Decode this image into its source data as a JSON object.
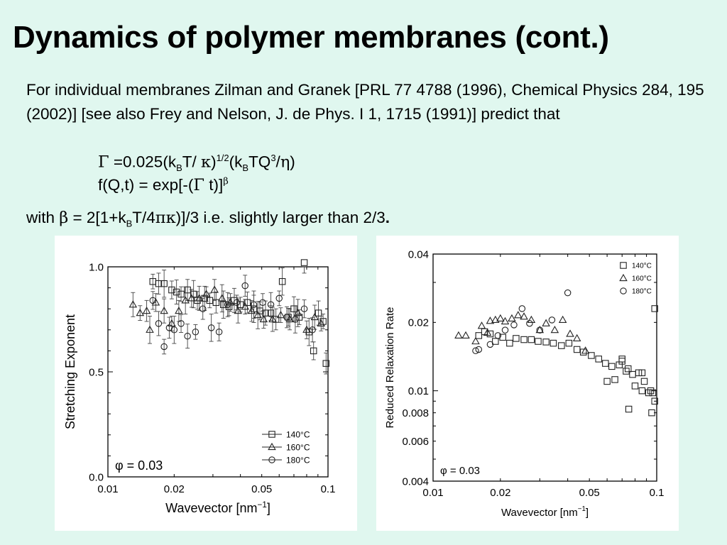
{
  "slide": {
    "title": "Dynamics of polymer membranes (cont.)",
    "intro": "For individual membranes Zilman and Granek [PRL 77 4788 (1996), Chemical Physics 284, 195 (2002)] [see also Frey and Nelson, J. de Phys. I 1, 1715 (1991)] predict that",
    "eq1": {
      "gamma": "Γ",
      "part1": " =0.025(k",
      "sub_b1": "B",
      "part2": "T/ ",
      "kappa": "κ",
      "part3": ")",
      "exp": "1/2",
      "part4": "(k",
      "sub_b2": "B",
      "part5": "TQ",
      "exp3": "3",
      "part6": "/",
      "eta": "η",
      "part7": ")"
    },
    "eq2": {
      "part1": "f(Q,t) = exp[-(",
      "gamma": "Γ",
      "part2": " t)]",
      "beta": "β"
    },
    "with_line": {
      "part1": "with ",
      "beta": "β",
      "part2": " = 2[1+k",
      "sub_b": "B",
      "part3": "T/4",
      "pikappa": "πκ",
      "part4": ")]/3 i.e. slightly larger than 2/3",
      "period": "."
    }
  },
  "chart_data": [
    {
      "type": "scatter",
      "title": "",
      "xlabel": "Wavevector [nm",
      "xlabel_sup": "−1",
      "xlabel_end": "]",
      "ylabel": "Stretching Exponent",
      "xscale": "log",
      "xlim": [
        0.01,
        0.1
      ],
      "ylim": [
        0.0,
        1.0
      ],
      "xticks": [
        "0.01",
        "0.02",
        "0.05",
        "0.1"
      ],
      "yticks": [
        "0.0",
        "0.5",
        "1.0"
      ],
      "annotation": "φ = 0.03",
      "legend_position": "bottom-right",
      "error_bars": true,
      "series": [
        {
          "name": "140°C",
          "marker": "square",
          "points": [
            [
              0.016,
              0.93
            ],
            [
              0.017,
              0.92
            ],
            [
              0.018,
              0.92
            ],
            [
              0.0195,
              0.89
            ],
            [
              0.0205,
              0.88
            ],
            [
              0.0215,
              0.87
            ],
            [
              0.023,
              0.89
            ],
            [
              0.0245,
              0.87
            ],
            [
              0.0255,
              0.84
            ],
            [
              0.0275,
              0.85
            ],
            [
              0.029,
              0.84
            ],
            [
              0.031,
              0.83
            ],
            [
              0.0335,
              0.82
            ],
            [
              0.0355,
              0.81
            ],
            [
              0.0375,
              0.84
            ],
            [
              0.04,
              0.82
            ],
            [
              0.043,
              0.83
            ],
            [
              0.046,
              0.8
            ],
            [
              0.049,
              0.79
            ],
            [
              0.052,
              0.78
            ],
            [
              0.055,
              0.78
            ],
            [
              0.058,
              0.75
            ],
            [
              0.062,
              0.93
            ],
            [
              0.066,
              0.76
            ],
            [
              0.07,
              0.8
            ],
            [
              0.074,
              0.76
            ],
            [
              0.078,
              1.02
            ],
            [
              0.082,
              0.69
            ],
            [
              0.086,
              0.6
            ],
            [
              0.0905,
              0.78
            ],
            [
              0.095,
              0.74
            ],
            [
              0.098,
              0.54
            ]
          ]
        },
        {
          "name": "160°C",
          "marker": "triangle",
          "points": [
            [
              0.013,
              0.82
            ],
            [
              0.014,
              0.78
            ],
            [
              0.015,
              0.79
            ],
            [
              0.0155,
              0.7
            ],
            [
              0.0165,
              0.83
            ],
            [
              0.018,
              0.79
            ],
            [
              0.0195,
              0.73
            ],
            [
              0.021,
              0.79
            ],
            [
              0.0225,
              0.84
            ],
            [
              0.024,
              0.85
            ],
            [
              0.026,
              0.85
            ],
            [
              0.028,
              0.87
            ],
            [
              0.0305,
              0.89
            ],
            [
              0.033,
              0.85
            ],
            [
              0.036,
              0.83
            ],
            [
              0.039,
              0.79
            ],
            [
              0.042,
              0.81
            ],
            [
              0.045,
              0.79
            ],
            [
              0.048,
              0.77
            ],
            [
              0.051,
              0.75
            ],
            [
              0.056,
              0.75
            ],
            [
              0.061,
              0.77
            ],
            [
              0.067,
              0.75
            ],
            [
              0.073,
              0.78
            ],
            [
              0.08,
              0.7
            ],
            [
              0.087,
              0.76
            ],
            [
              0.093,
              0.73
            ]
          ]
        },
        {
          "name": "180°C",
          "marker": "circle",
          "points": [
            [
              0.016,
              0.84
            ],
            [
              0.017,
              0.73
            ],
            [
              0.018,
              0.62
            ],
            [
              0.019,
              0.71
            ],
            [
              0.02,
              0.7
            ],
            [
              0.0215,
              0.73
            ],
            [
              0.023,
              0.67
            ],
            [
              0.025,
              0.69
            ],
            [
              0.027,
              0.8
            ],
            [
              0.0295,
              0.71
            ],
            [
              0.032,
              0.69
            ],
            [
              0.035,
              0.82
            ],
            [
              0.0385,
              0.83
            ],
            [
              0.042,
              0.91
            ],
            [
              0.046,
              0.82
            ],
            [
              0.0505,
              0.83
            ],
            [
              0.055,
              0.82
            ],
            [
              0.06,
              0.85
            ],
            [
              0.065,
              0.76
            ],
            [
              0.071,
              0.75
            ],
            [
              0.078,
              0.8
            ],
            [
              0.085,
              0.7
            ]
          ]
        }
      ]
    },
    {
      "type": "scatter",
      "title": "",
      "xlabel": "Wavevector [nm",
      "xlabel_sup": "−1",
      "xlabel_end": "]",
      "ylabel": "Reduced Relaxation Rate",
      "xscale": "log",
      "yscale": "log",
      "xlim": [
        0.01,
        0.1
      ],
      "ylim": [
        0.004,
        0.04
      ],
      "xticks": [
        "0.01",
        "0.02",
        "0.05",
        "0.1"
      ],
      "yticks": [
        "0.004",
        "0.006",
        "0.008",
        "0.01",
        "0.02",
        "0.04"
      ],
      "annotation": "φ = 0.03",
      "legend_position": "top-right",
      "series": [
        {
          "name": "140°C",
          "marker": "square",
          "points": [
            [
              0.016,
              0.0175
            ],
            [
              0.017,
              0.0182
            ],
            [
              0.018,
              0.0178
            ],
            [
              0.019,
              0.0165
            ],
            [
              0.0205,
              0.0172
            ],
            [
              0.022,
              0.0162
            ],
            [
              0.0235,
              0.017
            ],
            [
              0.0255,
              0.0168
            ],
            [
              0.0275,
              0.0168
            ],
            [
              0.0295,
              0.0165
            ],
            [
              0.032,
              0.0164
            ],
            [
              0.0345,
              0.0162
            ],
            [
              0.0375,
              0.0158
            ],
            [
              0.0405,
              0.0162
            ],
            [
              0.044,
              0.0152
            ],
            [
              0.047,
              0.0148
            ],
            [
              0.051,
              0.0143
            ],
            [
              0.055,
              0.0138
            ],
            [
              0.059,
              0.0132
            ],
            [
              0.063,
              0.0128
            ],
            [
              0.068,
              0.013
            ],
            [
              0.073,
              0.0122
            ],
            [
              0.078,
              0.0118
            ],
            [
              0.083,
              0.012
            ],
            [
              0.088,
              0.011
            ],
            [
              0.094,
              0.01
            ],
            [
              0.098,
              0.009
            ],
            [
              0.06,
              0.011
            ],
            [
              0.065,
              0.0112
            ],
            [
              0.07,
              0.0135
            ],
            [
              0.0745,
              0.0125
            ],
            [
              0.08,
              0.0105
            ],
            [
              0.086,
              0.01
            ],
            [
              0.092,
              0.0098
            ],
            [
              0.096,
              0.0098
            ],
            [
              0.086,
              0.012
            ],
            [
              0.075,
              0.0083
            ],
            [
              0.095,
              0.008
            ],
            [
              0.098,
              0.023
            ],
            [
              0.07,
              0.0138
            ]
          ]
        },
        {
          "name": "160°C",
          "marker": "triangle",
          "points": [
            [
              0.013,
              0.0175
            ],
            [
              0.014,
              0.0175
            ],
            [
              0.0155,
              0.0165
            ],
            [
              0.0165,
              0.0193
            ],
            [
              0.0175,
              0.018
            ],
            [
              0.018,
              0.0203
            ],
            [
              0.019,
              0.0205
            ],
            [
              0.02,
              0.0208
            ],
            [
              0.021,
              0.0202
            ],
            [
              0.0225,
              0.0208
            ],
            [
              0.024,
              0.0215
            ],
            [
              0.0255,
              0.0212
            ],
            [
              0.0275,
              0.0205
            ],
            [
              0.03,
              0.0185
            ],
            [
              0.032,
              0.0198
            ],
            [
              0.035,
              0.0185
            ],
            [
              0.038,
              0.0205
            ],
            [
              0.041,
              0.0178
            ],
            [
              0.044,
              0.017
            ],
            [
              0.048,
              0.015
            ]
          ]
        },
        {
          "name": "180°C",
          "marker": "circle",
          "points": [
            [
              0.0155,
              0.015
            ],
            [
              0.016,
              0.0152
            ],
            [
              0.018,
              0.016
            ],
            [
              0.0195,
              0.0175
            ],
            [
              0.021,
              0.0185
            ],
            [
              0.023,
              0.0195
            ],
            [
              0.025,
              0.023
            ],
            [
              0.027,
              0.0198
            ],
            [
              0.03,
              0.0185
            ],
            [
              0.034,
              0.0205
            ],
            [
              0.04,
              0.027
            ]
          ]
        }
      ]
    }
  ]
}
